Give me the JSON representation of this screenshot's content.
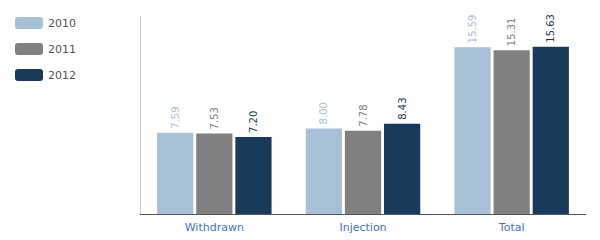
{
  "chart_data": {
    "type": "bar",
    "categories": [
      "Withdrawn",
      "Injection",
      "Total"
    ],
    "series": [
      {
        "name": "2010",
        "color": "#a8c0d6",
        "values": [
          7.59,
          8.0,
          15.59
        ],
        "value_labels": [
          "7.59",
          "8.00",
          "15.59"
        ]
      },
      {
        "name": "2011",
        "color": "#808080",
        "values": [
          7.53,
          7.78,
          15.31
        ],
        "value_labels": [
          "7.53",
          "7.78",
          "15.31"
        ]
      },
      {
        "name": "2012",
        "color": "#1a3a5c",
        "values": [
          7.2,
          8.43,
          15.63
        ],
        "value_labels": [
          "7.20",
          "8.43",
          "15.63"
        ]
      }
    ],
    "ylim": [
      0,
      18.5
    ],
    "yticks": [],
    "tick_labels": "x",
    "grid": false,
    "legend": "upper left",
    "data_labels": true
  }
}
